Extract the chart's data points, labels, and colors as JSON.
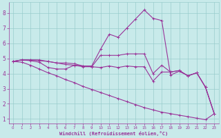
{
  "bg_color": "#c8eaea",
  "line_color": "#993399",
  "grid_color": "#99cccc",
  "xlabel": "Windchill (Refroidissement éolien,°C)",
  "xlabel_color": "#993399",
  "tick_color": "#993399",
  "xlim": [
    -0.5,
    23.5
  ],
  "ylim": [
    0.7,
    8.7
  ],
  "xticks": [
    0,
    1,
    2,
    3,
    4,
    5,
    6,
    7,
    8,
    9,
    10,
    11,
    12,
    13,
    14,
    15,
    16,
    17,
    18,
    19,
    20,
    21,
    22,
    23
  ],
  "yticks": [
    1,
    2,
    3,
    4,
    5,
    6,
    7,
    8
  ],
  "series": [
    [
      4.8,
      4.9,
      4.9,
      4.9,
      4.8,
      4.7,
      4.7,
      4.65,
      4.5,
      4.5,
      5.6,
      6.6,
      6.4,
      7.0,
      7.6,
      8.2,
      7.65,
      7.5,
      3.9,
      4.15,
      3.85,
      4.05,
      3.1,
      1.35
    ],
    [
      4.8,
      4.9,
      4.9,
      4.85,
      4.8,
      4.7,
      4.6,
      4.55,
      4.5,
      4.45,
      5.2,
      5.2,
      5.2,
      5.3,
      5.3,
      5.3,
      4.0,
      4.55,
      4.1,
      4.2,
      3.85,
      4.05,
      3.1,
      1.35
    ],
    [
      4.8,
      4.9,
      4.85,
      4.75,
      4.4,
      4.3,
      4.3,
      4.55,
      4.45,
      4.45,
      4.4,
      4.5,
      4.4,
      4.5,
      4.45,
      4.45,
      3.5,
      4.1,
      4.1,
      4.2,
      3.85,
      4.05,
      3.1,
      1.35
    ],
    [
      4.8,
      4.75,
      4.55,
      4.3,
      4.05,
      3.85,
      3.6,
      3.4,
      3.15,
      2.95,
      2.75,
      2.55,
      2.35,
      2.15,
      1.95,
      1.75,
      1.6,
      1.45,
      1.35,
      1.25,
      1.15,
      1.05,
      0.95,
      1.35
    ]
  ]
}
